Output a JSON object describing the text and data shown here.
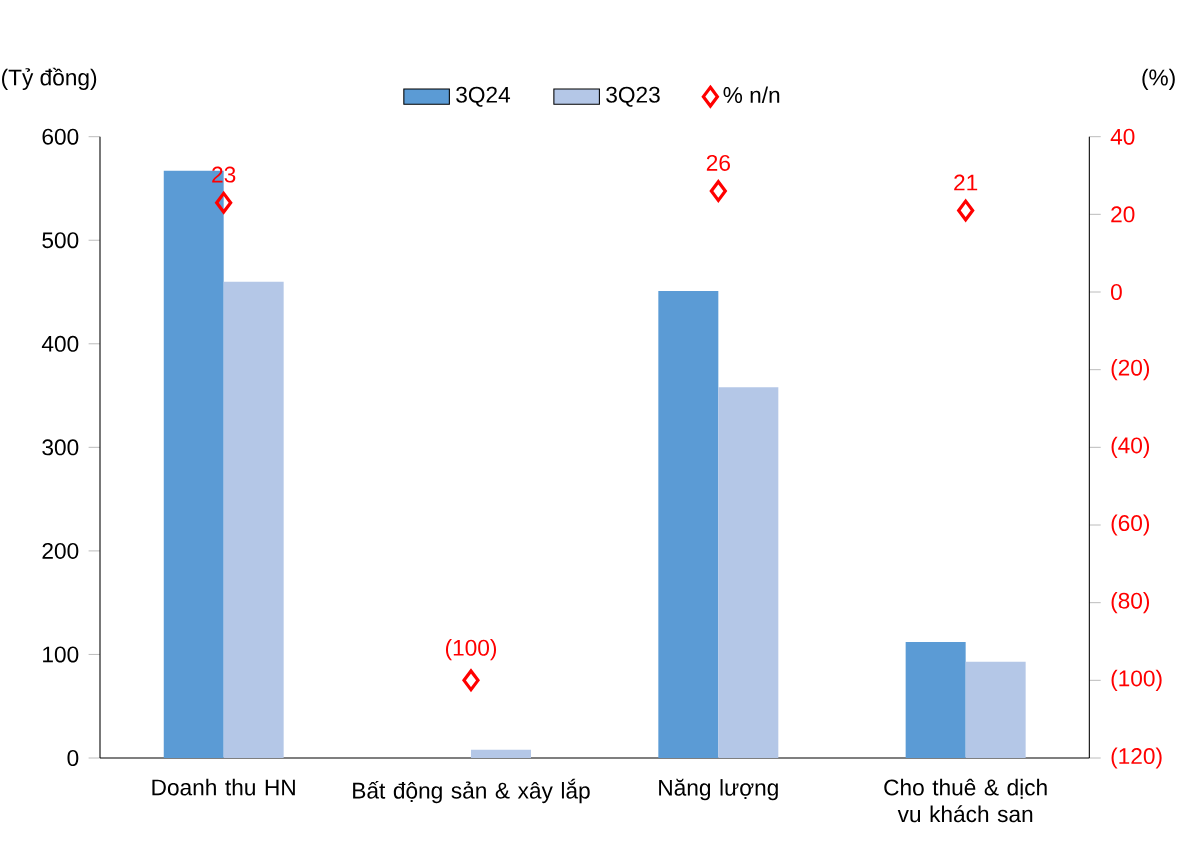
{
  "chart_data": {
    "type": "bar",
    "ylabel": "(Tỷ đồng)",
    "y2label": "(%)",
    "categories": [
      "Doanh thu HN",
      "Bất động sản & xây lắp",
      "Năng lượng",
      "Cho thuê & dịch vu khách san"
    ],
    "series": [
      {
        "name": "3Q24",
        "color": "#5b9bd5",
        "values": [
          567,
          0,
          451,
          112
        ]
      },
      {
        "name": "3Q23",
        "color": "#b4c7e7",
        "values": [
          460,
          8,
          358,
          93
        ]
      },
      {
        "name": "% n/n",
        "type": "scatter",
        "axis": "y2",
        "color": "#ff0000",
        "marker": "diamond",
        "values": [
          23,
          -100,
          26,
          21
        ],
        "value_labels": [
          "23",
          "(100)",
          "26",
          "21"
        ]
      }
    ],
    "ylim": [
      0,
      600
    ],
    "yticks": [
      0,
      100,
      200,
      300,
      400,
      500,
      600
    ],
    "y2lim": [
      -120,
      40
    ],
    "y2ticks": [
      {
        "value": -120,
        "label": "(120)"
      },
      {
        "value": -100,
        "label": "(100)"
      },
      {
        "value": -80,
        "label": "(80)"
      },
      {
        "value": -60,
        "label": "(60)"
      },
      {
        "value": -40,
        "label": "(40)"
      },
      {
        "value": -20,
        "label": "(20)"
      },
      0,
      20,
      40
    ],
    "legend": "top",
    "grid": false
  }
}
